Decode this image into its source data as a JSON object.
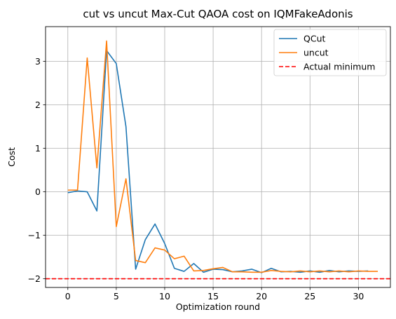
{
  "chart_data": {
    "type": "line",
    "title": "cut vs uncut Max-Cut QAOA cost on IQMFakeAdonis",
    "xlabel": "Optimization round",
    "ylabel": "Cost",
    "xlim": [
      -2.3,
      33.3
    ],
    "ylim": [
      -2.2,
      3.8
    ],
    "xticks": [
      0,
      5,
      10,
      15,
      20,
      25,
      30
    ],
    "yticks": [
      -2,
      -1,
      0,
      1,
      2,
      3
    ],
    "xtick_labels": [
      "0",
      "5",
      "10",
      "15",
      "20",
      "25",
      "30"
    ],
    "ytick_labels": [
      "−2",
      "−1",
      "0",
      "1",
      "2",
      "3"
    ],
    "grid": true,
    "legend_position": "top-right",
    "series": [
      {
        "name": "QCut",
        "color": "#1f77b4",
        "style": "solid",
        "x": [
          0,
          1,
          2,
          3,
          4,
          5,
          6,
          7,
          8,
          9,
          10,
          11,
          12,
          13,
          14,
          15,
          16,
          17,
          18,
          19,
          20,
          21,
          22,
          23,
          24,
          25,
          26,
          27,
          28,
          29,
          30,
          31
        ],
        "values": [
          -0.02,
          0.02,
          0.0,
          -0.44,
          3.25,
          2.95,
          1.5,
          -1.78,
          -1.1,
          -0.74,
          -1.19,
          -1.76,
          -1.83,
          -1.65,
          -1.85,
          -1.78,
          -1.79,
          -1.84,
          -1.82,
          -1.78,
          -1.86,
          -1.76,
          -1.84,
          -1.83,
          -1.85,
          -1.82,
          -1.85,
          -1.81,
          -1.84,
          -1.82,
          -1.83,
          -1.82
        ]
      },
      {
        "name": "uncut",
        "color": "#ff7f0e",
        "style": "solid",
        "x": [
          0,
          1,
          2,
          3,
          4,
          5,
          6,
          7,
          8,
          9,
          10,
          11,
          12,
          13,
          14,
          15,
          16,
          17,
          18,
          19,
          20,
          21,
          22,
          23,
          24,
          25,
          26,
          27,
          28,
          29,
          30,
          31,
          32
        ],
        "values": [
          0.04,
          0.04,
          3.08,
          0.55,
          3.47,
          -0.8,
          0.3,
          -1.58,
          -1.63,
          -1.29,
          -1.34,
          -1.54,
          -1.48,
          -1.82,
          -1.81,
          -1.77,
          -1.74,
          -1.84,
          -1.84,
          -1.85,
          -1.85,
          -1.81,
          -1.83,
          -1.84,
          -1.82,
          -1.84,
          -1.82,
          -1.84,
          -1.82,
          -1.84,
          -1.82,
          -1.83,
          -1.83
        ]
      },
      {
        "name": "Actual minimum",
        "color": "#ff0000",
        "style": "dashed",
        "hline": -2
      }
    ]
  }
}
